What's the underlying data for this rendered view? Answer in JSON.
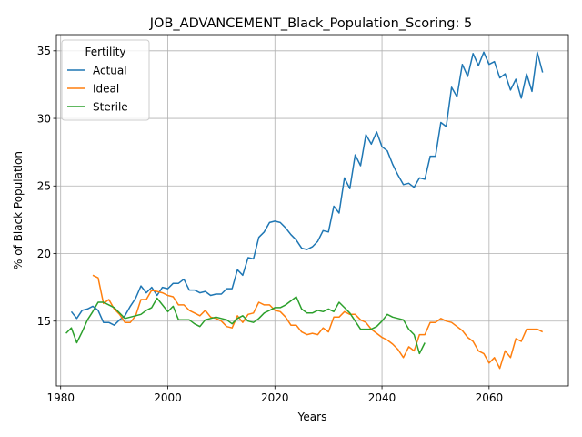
{
  "chart_data": {
    "type": "line",
    "title": "JOB_ADVANCEMENT_Black_Population_Scoring: 5",
    "xlabel": "Years",
    "ylabel": "% of Black Population",
    "xlim": [
      1979.2,
      2074.8
    ],
    "ylim": [
      10.2,
      36.2
    ],
    "xticks": [
      1980,
      2000,
      2020,
      2040,
      2060
    ],
    "yticks": [
      15,
      20,
      25,
      30,
      35
    ],
    "grid": true,
    "legend": {
      "title": "Fertility",
      "placement": "top-left"
    },
    "series": [
      {
        "name": "Actual",
        "color": "#1f77b4",
        "x": [
          1982,
          1983,
          1984,
          1985,
          1986,
          1987,
          1988,
          1989,
          1990,
          1991,
          1992,
          1993,
          1994,
          1995,
          1996,
          1997,
          1998,
          1999,
          2000,
          2001,
          2002,
          2003,
          2004,
          2005,
          2006,
          2007,
          2008,
          2009,
          2010,
          2011,
          2012,
          2013,
          2014,
          2015,
          2016,
          2017,
          2018,
          2019,
          2020,
          2021,
          2022,
          2023,
          2024,
          2025,
          2026,
          2027,
          2028,
          2029,
          2030,
          2031,
          2032,
          2033,
          2034,
          2035,
          2036,
          2037,
          2038,
          2039,
          2040,
          2041,
          2042,
          2043,
          2044,
          2045,
          2046,
          2047,
          2048,
          2049,
          2050,
          2051,
          2052,
          2053,
          2054,
          2055,
          2056,
          2057,
          2058,
          2059,
          2060,
          2061,
          2062,
          2063,
          2064,
          2065,
          2066,
          2067,
          2068,
          2069,
          2070
        ],
        "y": [
          15.7,
          15.2,
          15.8,
          15.9,
          16.1,
          15.8,
          14.9,
          14.9,
          14.7,
          15.1,
          15.4,
          16.1,
          16.7,
          17.6,
          17.1,
          17.5,
          16.9,
          17.5,
          17.4,
          17.8,
          17.8,
          18.1,
          17.3,
          17.3,
          17.1,
          17.2,
          16.9,
          17.0,
          17.0,
          17.4,
          17.4,
          18.8,
          18.4,
          19.7,
          19.6,
          21.2,
          21.6,
          22.3,
          22.4,
          22.3,
          21.9,
          21.4,
          21.0,
          20.4,
          20.3,
          20.5,
          20.9,
          21.7,
          21.6,
          23.5,
          23.0,
          25.6,
          24.8,
          27.3,
          26.5,
          28.8,
          28.1,
          29.0,
          27.9,
          27.6,
          26.6,
          25.8,
          25.1,
          25.2,
          24.9,
          25.6,
          25.5,
          27.2,
          27.2,
          29.7,
          29.4,
          32.3,
          31.6,
          34.0,
          33.1,
          34.8,
          33.9,
          34.9,
          34.0,
          34.2,
          33.0,
          33.3,
          32.1,
          32.9,
          31.5,
          33.3,
          32.0,
          34.9,
          33.4
        ]
      },
      {
        "name": "Ideal",
        "color": "#ff7f0e",
        "x": [
          1986,
          1987,
          1988,
          1989,
          1990,
          1991,
          1992,
          1993,
          1994,
          1995,
          1996,
          1997,
          1998,
          1999,
          2000,
          2001,
          2002,
          2003,
          2004,
          2005,
          2006,
          2007,
          2008,
          2009,
          2010,
          2011,
          2012,
          2013,
          2014,
          2015,
          2016,
          2017,
          2018,
          2019,
          2020,
          2021,
          2022,
          2023,
          2024,
          2025,
          2026,
          2027,
          2028,
          2029,
          2030,
          2031,
          2032,
          2033,
          2034,
          2035,
          2036,
          2037,
          2038,
          2039,
          2040,
          2041,
          2042,
          2043,
          2044,
          2045,
          2046,
          2047,
          2048,
          2049,
          2050,
          2051,
          2052,
          2053,
          2054,
          2055,
          2056,
          2057,
          2058,
          2059,
          2060,
          2061,
          2062,
          2063,
          2064,
          2065,
          2066,
          2067,
          2068,
          2069,
          2070
        ],
        "y": [
          18.4,
          18.2,
          16.3,
          16.6,
          15.9,
          15.5,
          14.9,
          14.9,
          15.4,
          16.6,
          16.6,
          17.3,
          17.2,
          17.1,
          16.9,
          16.8,
          16.2,
          16.2,
          15.8,
          15.6,
          15.4,
          15.8,
          15.3,
          15.2,
          15.0,
          14.6,
          14.5,
          15.4,
          14.9,
          15.5,
          15.6,
          16.4,
          16.2,
          16.2,
          15.8,
          15.7,
          15.3,
          14.7,
          14.7,
          14.2,
          14.0,
          14.1,
          14.0,
          14.5,
          14.2,
          15.3,
          15.3,
          15.7,
          15.5,
          15.5,
          15.1,
          14.9,
          14.4,
          14.1,
          13.8,
          13.6,
          13.3,
          12.9,
          12.3,
          13.1,
          12.8,
          14.0,
          14.0,
          14.9,
          14.9,
          15.2,
          15.0,
          14.9,
          14.6,
          14.3,
          13.8,
          13.5,
          12.8,
          12.6,
          11.9,
          12.3,
          11.5,
          12.8,
          12.3,
          13.7,
          13.5,
          14.4,
          14.4,
          14.4,
          14.2
        ]
      },
      {
        "name": "Sterile",
        "color": "#2ca02c",
        "x": [
          1981,
          1982,
          1983,
          1984,
          1985,
          1986,
          1987,
          1988,
          1989,
          1990,
          1991,
          1992,
          1993,
          1994,
          1995,
          1996,
          1997,
          1998,
          1999,
          2000,
          2001,
          2002,
          2003,
          2004,
          2005,
          2006,
          2007,
          2008,
          2009,
          2010,
          2011,
          2012,
          2013,
          2014,
          2015,
          2016,
          2017,
          2018,
          2019,
          2020,
          2021,
          2022,
          2023,
          2024,
          2025,
          2026,
          2027,
          2028,
          2029,
          2030,
          2031,
          2032,
          2033,
          2034,
          2035,
          2036,
          2037,
          2038,
          2039,
          2040,
          2041,
          2042,
          2043,
          2044,
          2045,
          2046,
          2047,
          2048
        ],
        "y": [
          14.1,
          14.5,
          13.4,
          14.2,
          15.1,
          15.7,
          16.4,
          16.4,
          16.2,
          16.0,
          15.6,
          15.2,
          15.3,
          15.4,
          15.5,
          15.8,
          16.0,
          16.7,
          16.2,
          15.7,
          16.1,
          15.1,
          15.1,
          15.1,
          14.8,
          14.6,
          15.1,
          15.2,
          15.3,
          15.2,
          15.1,
          14.8,
          15.2,
          15.4,
          15.0,
          14.9,
          15.2,
          15.6,
          15.8,
          16.0,
          16.0,
          16.2,
          16.5,
          16.8,
          15.9,
          15.6,
          15.6,
          15.8,
          15.7,
          15.9,
          15.7,
          16.4,
          16.0,
          15.6,
          15.0,
          14.4,
          14.4,
          14.4,
          14.6,
          15.0,
          15.5,
          15.3,
          15.2,
          15.1,
          14.4,
          14.0,
          12.6,
          13.4
        ]
      }
    ]
  }
}
